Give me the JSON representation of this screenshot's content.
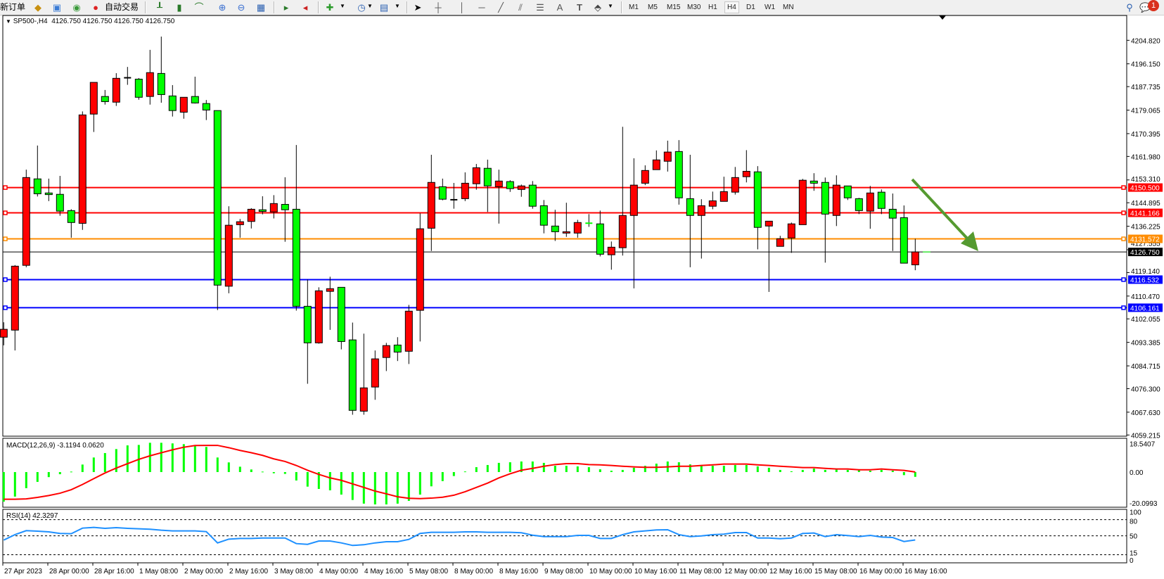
{
  "toolbar": {
    "new_order_label": "新订单",
    "auto_trading_label": "自动交易",
    "icons": [
      "market-watch-icon",
      "navigator-icon",
      "signals-icon",
      "auto-trading-icon",
      "bar-chart-icon",
      "candlestick-icon",
      "line-chart-icon",
      "zoom-in-icon",
      "zoom-out-icon",
      "tile-windows-icon",
      "autoscroll-icon",
      "chart-shift-icon",
      "indicators-icon",
      "periods-icon",
      "templates-icon",
      "cursor-icon",
      "crosshair-icon",
      "vertical-line-icon",
      "horizontal-line-icon",
      "trendline-icon",
      "equidistant-channel-icon",
      "fibonacci-icon",
      "text-icon",
      "text-label-icon",
      "arrows-icon"
    ],
    "text_tool_label": "A",
    "label_tool_label": "T",
    "timeframes": [
      "M1",
      "M5",
      "M15",
      "M30",
      "H1",
      "H4",
      "D1",
      "W1",
      "MN"
    ],
    "active_timeframe": "H4",
    "notification_count": "1"
  },
  "chart": {
    "symbol": "SP500-,H4",
    "ohlc_text": "4126.750 4126.750 4126.750 4126.750"
  },
  "chart_data": {
    "type": "candlestick",
    "timeframe": "H4",
    "up_color": "#ff0000",
    "down_color": "#00ff00",
    "candles_ohlc": [
      [
        4095.3,
        4100.8,
        4092.3,
        4098.2
      ],
      [
        4097.9,
        4121.9,
        4090.4,
        4121.5
      ],
      [
        4121.8,
        4157.1,
        4121.1,
        4154.2
      ],
      [
        4153.7,
        4166.0,
        4147.2,
        4148.2
      ],
      [
        4148.5,
        4153.8,
        4145.5,
        4147.9
      ],
      [
        4148.0,
        4154.8,
        4140.1,
        4141.8
      ],
      [
        4142.0,
        4142.5,
        4132.0,
        4137.6
      ],
      [
        4137.3,
        4178.6,
        4134.9,
        4177.3
      ],
      [
        4177.6,
        4189.3,
        4171.0,
        4189.3
      ],
      [
        4184.1,
        4186.5,
        4181.1,
        4182.2
      ],
      [
        4182.0,
        4192.7,
        4180.6,
        4190.8
      ],
      [
        4191.0,
        4195.0,
        4188.4,
        4191.0
      ],
      [
        4190.5,
        4190.9,
        4182.9,
        4183.8
      ],
      [
        4184.1,
        4201.3,
        4181.1,
        4192.9
      ],
      [
        4192.6,
        4206.2,
        4181.8,
        4184.8
      ],
      [
        4184.3,
        4188.3,
        4176.7,
        4178.9
      ],
      [
        4178.3,
        4183.8,
        4175.9,
        4183.8
      ],
      [
        4184.1,
        4191.4,
        4181.5,
        4181.7
      ],
      [
        4181.5,
        4182.8,
        4175.4,
        4179.1
      ],
      [
        4178.9,
        4178.9,
        4105.3,
        4114.5
      ],
      [
        4114.1,
        4143.6,
        4111.5,
        4136.6
      ],
      [
        4136.8,
        4138.9,
        4132.0,
        4137.9
      ],
      [
        4138.0,
        4142.9,
        4135.4,
        4142.5
      ],
      [
        4142.3,
        4147.3,
        4140.6,
        4141.7
      ],
      [
        4141.5,
        4147.7,
        4139.1,
        4144.6
      ],
      [
        4144.3,
        4154.3,
        4130.5,
        4142.3
      ],
      [
        4142.5,
        4166.2,
        4105.1,
        4106.7
      ],
      [
        4106.7,
        4116.6,
        4078.1,
        4093.2
      ],
      [
        4093.2,
        4113.7,
        4092.9,
        4112.4
      ],
      [
        4112.2,
        4117.6,
        4098.0,
        4113.2
      ],
      [
        4113.7,
        4113.7,
        4090.8,
        4093.7
      ],
      [
        4094.3,
        4100.7,
        4066.7,
        4068.3
      ],
      [
        4068.0,
        4096.6,
        4066.7,
        4076.6
      ],
      [
        4076.9,
        4090.4,
        4072.2,
        4087.3
      ],
      [
        4087.8,
        4093.2,
        4082.8,
        4092.2
      ],
      [
        4092.4,
        4095.3,
        4086.5,
        4089.8
      ],
      [
        4090.1,
        4107.2,
        4085.4,
        4104.9
      ],
      [
        4105.2,
        4141.0,
        4093.7,
        4135.3
      ],
      [
        4135.5,
        4162.6,
        4127.1,
        4152.4
      ],
      [
        4150.8,
        4153.8,
        4145.8,
        4146.2
      ],
      [
        4146.0,
        4152.2,
        4142.7,
        4146.0
      ],
      [
        4146.4,
        4156.1,
        4145.5,
        4152.1
      ],
      [
        4151.9,
        4159.2,
        4149.7,
        4157.8
      ],
      [
        4157.6,
        4160.8,
        4141.5,
        4151.1
      ],
      [
        4150.8,
        4157.1,
        4137.2,
        4152.9
      ],
      [
        4152.7,
        4153.2,
        4148.9,
        4150.1
      ],
      [
        4149.8,
        4151.6,
        4147.1,
        4151.1
      ],
      [
        4151.4,
        4152.9,
        4142.7,
        4143.6
      ],
      [
        4143.8,
        4145.9,
        4133.6,
        4136.6
      ],
      [
        4136.3,
        4142.3,
        4130.8,
        4134.2
      ],
      [
        4133.7,
        4144.9,
        4132.3,
        4134.2
      ],
      [
        4133.7,
        4138.6,
        4132.0,
        4137.6
      ],
      [
        4137.35,
        4140.7,
        4136.0,
        4137.3
      ],
      [
        4137.1,
        4142.0,
        4125.1,
        4125.9
      ],
      [
        4125.7,
        4130.6,
        4120.2,
        4128.5
      ],
      [
        4128.3,
        4172.9,
        4125.4,
        4140.2
      ],
      [
        4140.2,
        4161.3,
        4113.3,
        4151.4
      ],
      [
        4152.1,
        4158.7,
        4151.4,
        4156.8
      ],
      [
        4157.1,
        4164.2,
        4157.1,
        4160.7
      ],
      [
        4160.2,
        4167.8,
        4156.4,
        4163.6
      ],
      [
        4163.8,
        4168.0,
        4144.2,
        4146.7
      ],
      [
        4146.4,
        4162.6,
        4121.1,
        4140.2
      ],
      [
        4140.2,
        4146.2,
        4124.3,
        4143.8
      ],
      [
        4143.6,
        4149.0,
        4142.5,
        4145.6
      ],
      [
        4145.4,
        4154.5,
        4145.4,
        4149.0
      ],
      [
        4148.8,
        4158.1,
        4147.9,
        4154.2
      ],
      [
        4154.5,
        4164.3,
        4152.4,
        4156.5
      ],
      [
        4156.3,
        4158.4,
        4127.7,
        4135.8
      ],
      [
        4136.3,
        4138.1,
        4112.0,
        4138.1
      ],
      [
        4128.8,
        4132.7,
        4128.8,
        4131.6
      ],
      [
        4131.9,
        4137.6,
        4126.4,
        4137.1
      ],
      [
        4136.8,
        4153.7,
        4136.8,
        4153.2
      ],
      [
        4152.9,
        4155.8,
        4149.3,
        4152.1
      ],
      [
        4152.4,
        4154.2,
        4122.8,
        4140.7
      ],
      [
        4140.2,
        4155.0,
        4136.3,
        4151.4
      ],
      [
        4151.1,
        4151.1,
        4145.9,
        4146.7
      ],
      [
        4146.4,
        4146.7,
        4140.7,
        4142.0
      ],
      [
        4141.8,
        4151.1,
        4135.3,
        4148.5
      ],
      [
        4148.8,
        4149.8,
        4140.7,
        4142.8
      ],
      [
        4142.5,
        4148.3,
        4127.1,
        4139.2
      ],
      [
        4139.4,
        4143.9,
        4122.6,
        4122.6
      ],
      [
        4122.0,
        4131.6,
        4120.0,
        4126.75
      ]
    ],
    "price_axis": {
      "range": [
        4059.215,
        4204.82
      ],
      "ticks": [
        "4204.820",
        "4196.150",
        "4187.735",
        "4179.065",
        "4170.395",
        "4161.980",
        "4153.310",
        "4144.895",
        "4136.225",
        "4127.555",
        "4119.140",
        "4110.470",
        "4102.055",
        "4093.385",
        "4084.715",
        "4076.300",
        "4067.630",
        "4059.215"
      ]
    },
    "horizontal_lines": [
      {
        "price": "4150.500",
        "color": "#ff0000"
      },
      {
        "price": "4141.166",
        "color": "#ff0000"
      },
      {
        "price": "4131.572",
        "color": "#ff8c00"
      },
      {
        "price": "4116.532",
        "color": "#0000ff"
      },
      {
        "price": "4106.161",
        "color": "#0000ff"
      }
    ],
    "current_price": {
      "price": "4126.750",
      "color": "#000000"
    },
    "arrow": {
      "color": "#559a30",
      "direction": "down-right"
    },
    "time_axis": [
      "27 Apr 2023",
      "28 Apr 00:00",
      "28 Apr 16:00",
      "1 May 08:00",
      "2 May 00:00",
      "2 May 16:00",
      "3 May 08:00",
      "4 May 00:00",
      "4 May 16:00",
      "5 May 08:00",
      "8 May 00:00",
      "8 May 16:00",
      "9 May 08:00",
      "10 May 00:00",
      "10 May 16:00",
      "11 May 08:00",
      "12 May 00:00",
      "12 May 16:00",
      "15 May 08:00",
      "16 May 00:00",
      "16 May 16:00"
    ],
    "macd": {
      "label": "MACD(12,26,9) -3.1194 0.0620",
      "axis_labels": [
        "18.5407",
        "0.00",
        "-20.0993"
      ],
      "axis_values": [
        18.5407,
        0,
        -20.0993
      ],
      "histogram_color": "#00ff00",
      "signal_color": "#ff0000",
      "histogram": [
        -19.3,
        -16.0,
        -10.5,
        -6.4,
        -3.3,
        -1.4,
        0.3,
        4.9,
        9.5,
        12.4,
        15.0,
        17.4,
        17.7,
        19.1,
        19.1,
        18.7,
        18.2,
        17.2,
        16.4,
        9.5,
        6.3,
        3.5,
        1.7,
        0.3,
        -0.8,
        -1.2,
        -5.5,
        -9.5,
        -11.0,
        -11.9,
        -14.7,
        -18.2,
        -20.6,
        -21.1,
        -21.1,
        -20.6,
        -18.8,
        -14.7,
        -9.3,
        -5.9,
        -2.6,
        0.4,
        3.2,
        4.6,
        6.0,
        6.4,
        6.9,
        6.9,
        6.0,
        4.1,
        4.1,
        3.7,
        3.2,
        1.8,
        0.9,
        1.4,
        2.8,
        4.1,
        5.5,
        6.9,
        6.4,
        5.0,
        4.1,
        4.1,
        4.1,
        4.6,
        4.6,
        3.7,
        2.8,
        1.4,
        0.5,
        1.4,
        2.3,
        1.4,
        1.8,
        1.4,
        1.4,
        0.9,
        1.4,
        0.9,
        -2.0,
        -3.1194
      ],
      "signal": [
        -17.7,
        -17.7,
        -17.5,
        -16.5,
        -15.3,
        -13.8,
        -11.5,
        -8.1,
        -4.3,
        -0.6,
        2.6,
        5.5,
        8.3,
        10.6,
        12.6,
        14.5,
        16.2,
        17.3,
        17.4,
        17.4,
        15.9,
        14.1,
        12.6,
        10.9,
        8.6,
        6.9,
        4.3,
        1.2,
        -1.5,
        -3.8,
        -5.4,
        -7.7,
        -10.0,
        -12.4,
        -14.2,
        -16.1,
        -17.1,
        -17.3,
        -17.0,
        -16.4,
        -15.1,
        -12.8,
        -10.0,
        -7.2,
        -3.8,
        -1.1,
        1.2,
        2.4,
        3.8,
        4.9,
        5.5,
        5.5,
        4.9,
        4.7,
        4.3,
        3.8,
        3.4,
        3.1,
        3.1,
        3.4,
        3.8,
        3.8,
        4.3,
        4.7,
        5.2,
        5.2,
        5.2,
        4.7,
        4.3,
        3.8,
        3.4,
        2.9,
        2.9,
        2.4,
        2.0,
        2.0,
        1.5,
        1.5,
        2.0,
        1.5,
        1.1,
        0.062
      ]
    },
    "rsi": {
      "label": "RSI(14) 42.3297",
      "axis_labels": [
        "100",
        "80",
        "50",
        "15",
        "0"
      ],
      "axis_values": [
        100,
        80,
        50,
        15,
        0
      ],
      "levels": [
        80,
        50,
        15
      ],
      "color": "#1e90ff",
      "values": [
        42.1,
        52.2,
        59.6,
        58.7,
        57.4,
        54.4,
        53.9,
        64.3,
        65.6,
        63.9,
        65.2,
        63.9,
        63.0,
        62.2,
        60.4,
        59.1,
        59.1,
        59.1,
        57.8,
        36.9,
        43.9,
        45.2,
        45.2,
        46.0,
        46.0,
        46.0,
        35.6,
        34.3,
        40.4,
        40.4,
        36.9,
        32.2,
        33.5,
        36.9,
        39.1,
        39.1,
        43.4,
        54.4,
        56.5,
        56.5,
        56.5,
        57.4,
        57.4,
        56.5,
        56.5,
        56.5,
        55.7,
        51.2,
        48.6,
        48.6,
        48.6,
        50.8,
        50.8,
        45.2,
        45.2,
        52.2,
        57.4,
        59.1,
        60.9,
        61.3,
        52.2,
        48.6,
        49.9,
        52.2,
        53.1,
        56.1,
        56.1,
        46.0,
        46.0,
        44.7,
        46.0,
        54.4,
        55.2,
        48.6,
        52.2,
        50.5,
        48.6,
        50.8,
        47.8,
        46.9,
        39.5,
        42.3297
      ]
    }
  }
}
